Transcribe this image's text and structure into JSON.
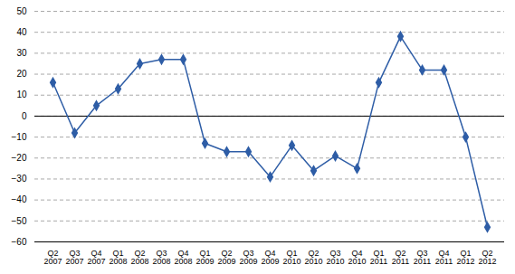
{
  "chart_data": {
    "type": "line",
    "categories": [
      "Q2\n2007",
      "Q3\n2007",
      "Q4\n2007",
      "Q1\n2008",
      "Q2\n2008",
      "Q3\n2008",
      "Q4\n2008",
      "Q1\n2009",
      "Q2\n2009",
      "Q3\n2009",
      "Q4\n2009",
      "Q1\n2010",
      "Q2\n2010",
      "Q3\n2010",
      "Q4\n2010",
      "Q1\n2011",
      "Q2\n2011",
      "Q3\n2011",
      "Q4\n2011",
      "Q1\n2012",
      "Q2\n2012"
    ],
    "values": [
      16,
      -8,
      5,
      13,
      25,
      27,
      27,
      -13,
      -17,
      -17,
      -29,
      -14,
      -26,
      -19,
      -25,
      16,
      38,
      22,
      22,
      -10,
      -53
    ],
    "color": "#2E5DA6",
    "marker": "diamond",
    "ylim": [
      -60,
      50
    ],
    "yticks": [
      -60,
      -50,
      -40,
      -30,
      -20,
      -10,
      0,
      10,
      20,
      30,
      40,
      50
    ],
    "grid": true
  }
}
